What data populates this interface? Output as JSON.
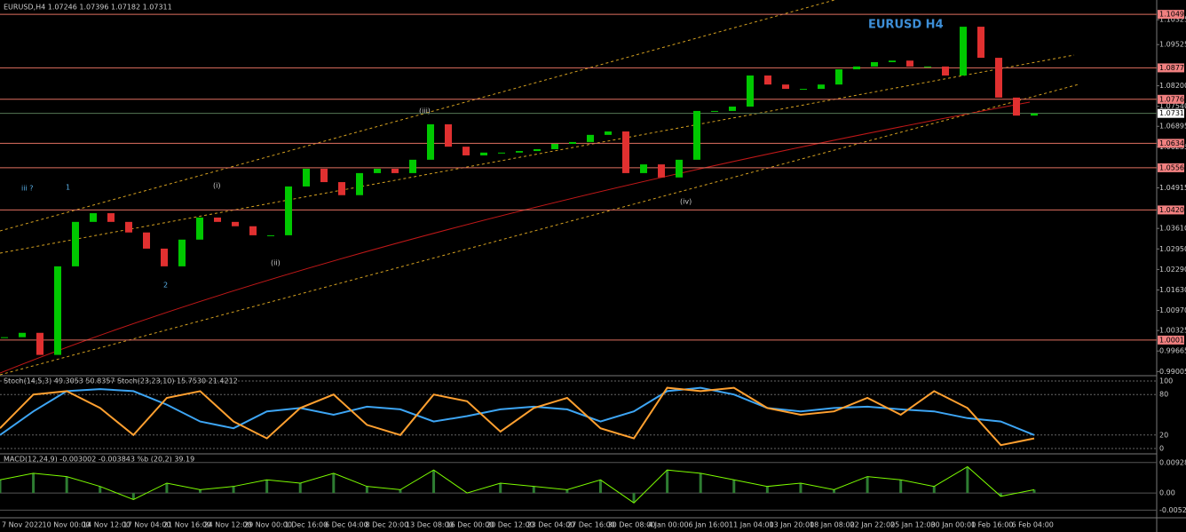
{
  "chart_data": {
    "type": "candlestick",
    "header": "EURUSD,H4  1.07246 1.07396 1.07182 1.07311",
    "title": "EURUSD H4",
    "close": [
      1.0011,
      1.0025,
      0.9954,
      1.0239,
      1.0382,
      1.041,
      1.0382,
      1.0348,
      1.0296,
      1.0239,
      1.0325,
      1.0396,
      1.0382,
      1.0368,
      1.0339,
      1.0339,
      1.0496,
      1.0553,
      1.051,
      1.0468,
      1.0539,
      1.0553,
      1.0539,
      1.0582,
      1.0696,
      1.0624,
      1.0596,
      1.0605,
      1.0605,
      1.061,
      1.0616,
      1.0633,
      1.0639,
      1.0662,
      1.0673,
      1.0539,
      1.0567,
      1.0525,
      1.0582,
      1.0739,
      1.0739,
      1.0753,
      1.0853,
      1.0824,
      1.081,
      1.081,
      1.0824,
      1.0873,
      1.0882,
      1.0896,
      1.0901,
      1.0882,
      1.0882,
      1.0853,
      1.101,
      1.091,
      1.0782,
      1.0724,
      1.07311
    ],
    "up_color": "#00c800",
    "down_color": "#e03030",
    "ylim": [
      0.989,
      1.1096
    ],
    "yticks": [
      {
        "value": 1.10325,
        "label": "1.10325"
      },
      {
        "value": 1.09525,
        "label": "1.09525"
      },
      {
        "value": 1.082,
        "label": "1.08200"
      },
      {
        "value": 1.0754,
        "label": "1.07540"
      },
      {
        "value": 1.06895,
        "label": "1.06895"
      },
      {
        "value": 1.06235,
        "label": "1.06235"
      },
      {
        "value": 1.04915,
        "label": "1.04915"
      },
      {
        "value": 1.0361,
        "label": "1.03610"
      },
      {
        "value": 1.0295,
        "label": "1.02950"
      },
      {
        "value": 1.0229,
        "label": "1.02290"
      },
      {
        "value": 1.0163,
        "label": "1.01630"
      },
      {
        "value": 1.0097,
        "label": "1.00970"
      },
      {
        "value": 1.00325,
        "label": "1.00325"
      },
      {
        "value": 0.99665,
        "label": "0.99665"
      },
      {
        "value": 0.99005,
        "label": "0.99005"
      }
    ],
    "levels": [
      {
        "value": 1.10499,
        "label": "1.10499"
      },
      {
        "value": 1.08776,
        "label": "1.08776"
      },
      {
        "value": 1.07765,
        "label": "1.07765"
      },
      {
        "value": 1.06348,
        "label": "1.06348"
      },
      {
        "value": 1.05561,
        "label": "1.05561"
      },
      {
        "value": 1.04204,
        "label": "1.04204"
      },
      {
        "value": 1.00018,
        "label": "1.00018"
      }
    ],
    "current_price": {
      "value": 1.07311,
      "label": "1.07311"
    },
    "annotations": [
      "iii ?",
      "1",
      "2",
      "(i)",
      "(ii)",
      "(iii)",
      "(iv)"
    ],
    "x_labels": [
      "7 Nov 2022",
      "10 Nov 00:00",
      "14 Nov 12:00",
      "17 Nov 04:00",
      "21 Nov 16:00",
      "24 Nov 12:00",
      "29 Nov 00:00",
      "1 Dec 16:00",
      "6 Dec 04:00",
      "8 Dec 20:00",
      "13 Dec 08:00",
      "16 Dec 00:00",
      "20 Dec 12:00",
      "23 Dec 04:00",
      "27 Dec 16:00",
      "30 Dec 08:00",
      "4 Jan 00:00",
      "6 Jan 16:00",
      "11 Jan 04:00",
      "13 Jan 20:00",
      "18 Jan 08:00",
      "22 Jan 22:00",
      "25 Jan 12:00",
      "30 Jan 00:00",
      "1 Feb 16:00",
      "6 Feb 04:00"
    ],
    "stoch": {
      "header": "Stoch(14,5,3) 49.3053 50.8357  Stoch(23,23,10) 15.7530 21.4212",
      "ylim": [
        0,
        100
      ],
      "yticks": [
        0,
        20,
        80,
        100
      ],
      "series": [
        {
          "color": "#3da5f4",
          "values": [
            20,
            55,
            85,
            88,
            85,
            65,
            40,
            30,
            55,
            60,
            50,
            62,
            58,
            40,
            48,
            58,
            62,
            58,
            40,
            55,
            85,
            90,
            80,
            60,
            55,
            60,
            62,
            58,
            55,
            45,
            40,
            20
          ]
        },
        {
          "color": "#ffa030",
          "values": [
            30,
            80,
            85,
            60,
            20,
            75,
            85,
            40,
            15,
            60,
            80,
            35,
            20,
            80,
            70,
            25,
            60,
            75,
            30,
            15,
            90,
            85,
            90,
            60,
            50,
            55,
            75,
            50,
            85,
            60,
            5,
            15
          ]
        }
      ]
    },
    "macd": {
      "header": "MACD(12,24,9) -0.003002 -0.003843  %b (20,2) 39.19",
      "ylim": [
        -0.0062,
        0.0103
      ],
      "yticks": [
        {
          "value": 0.009285,
          "label": "0.009285"
        },
        {
          "value": 0,
          "label": "0.00"
        },
        {
          "value": -0.005216,
          "label": "-0.005216"
        }
      ],
      "color": "#7cfc00",
      "values": [
        0.004,
        0.006,
        0.005,
        0.002,
        -0.002,
        0.003,
        0.001,
        0.002,
        0.004,
        0.003,
        0.006,
        0.002,
        0.001,
        0.007,
        0.0,
        0.003,
        0.002,
        0.001,
        0.004,
        -0.003,
        0.007,
        0.006,
        0.004,
        0.002,
        0.003,
        0.001,
        0.005,
        0.004,
        0.002,
        0.008,
        -0.001,
        0.001
      ]
    }
  }
}
